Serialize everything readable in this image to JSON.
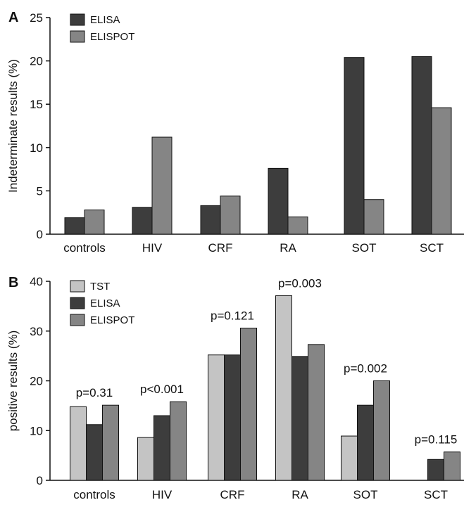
{
  "chart_data": [
    {
      "panel": "A",
      "type": "bar",
      "ylabel": "Indeterminate results (%)",
      "xlabel": "",
      "ylim": [
        0,
        25
      ],
      "yticks": [
        0,
        5,
        10,
        15,
        20,
        25
      ],
      "categories": [
        "controls",
        "HIV",
        "CRF",
        "RA",
        "SOT",
        "SCT"
      ],
      "series": [
        {
          "name": "ELISA",
          "color": "#3d3d3d",
          "values": [
            1.9,
            3.1,
            3.3,
            7.6,
            20.4,
            20.5
          ]
        },
        {
          "name": "ELISPOT",
          "color": "#858585",
          "values": [
            2.8,
            11.2,
            4.4,
            2.0,
            4.0,
            14.6
          ]
        }
      ],
      "legend_position": "top-left",
      "grid": false
    },
    {
      "panel": "B",
      "type": "bar",
      "ylabel": "positive results (%)",
      "xlabel": "",
      "ylim": [
        0,
        40
      ],
      "yticks": [
        0,
        10,
        20,
        30,
        40
      ],
      "categories": [
        "controls",
        "HIV",
        "CRF",
        "RA",
        "SOT",
        "SCT"
      ],
      "series": [
        {
          "name": "TST",
          "color": "#c4c4c4",
          "values": [
            14.8,
            8.6,
            25.2,
            37.1,
            8.9,
            null
          ]
        },
        {
          "name": "ELISA",
          "color": "#3d3d3d",
          "values": [
            11.2,
            13.0,
            25.2,
            24.9,
            15.1,
            4.2
          ]
        },
        {
          "name": "ELISPOT",
          "color": "#858585",
          "values": [
            15.1,
            15.8,
            30.6,
            27.3,
            20.0,
            5.7
          ]
        }
      ],
      "annotations": [
        "p=0.31",
        "p<0.001",
        "p=0.121",
        "p=0.003",
        "p=0.002",
        "p=0.115"
      ],
      "legend_position": "top-left",
      "grid": false
    }
  ]
}
